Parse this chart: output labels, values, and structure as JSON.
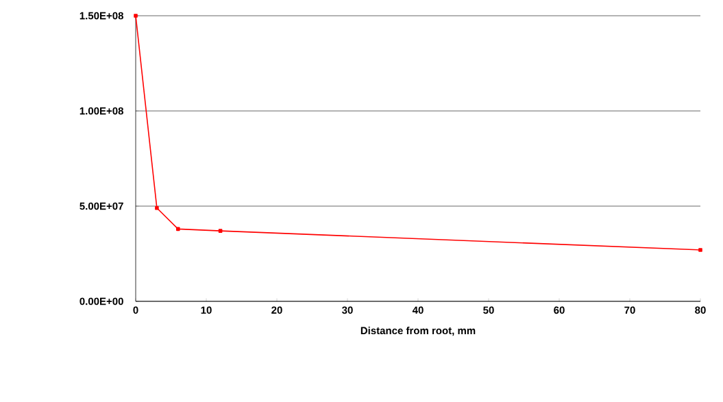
{
  "chart_data": {
    "type": "line",
    "xlabel": "Distance from root, mm",
    "x": [
      0,
      3,
      6,
      12,
      80
    ],
    "series": [
      {
        "color": "#ff0000",
        "values": [
          150000000,
          49000000,
          38000000,
          37000000,
          27000000
        ]
      }
    ],
    "xlim": [
      0,
      80
    ],
    "xticks": [
      0,
      10,
      20,
      30,
      40,
      50,
      60,
      70,
      80
    ],
    "ylim": [
      0,
      150000000
    ],
    "yticks": [
      {
        "value": 0,
        "label": "0.00E+00"
      },
      {
        "value": 50000000,
        "label": "5.00E+07"
      },
      {
        "value": 100000000,
        "label": "1.00E+08"
      },
      {
        "value": 150000000,
        "label": "1.50E+08"
      }
    ],
    "grid": "y",
    "marker": "square",
    "line_style": "solid"
  }
}
